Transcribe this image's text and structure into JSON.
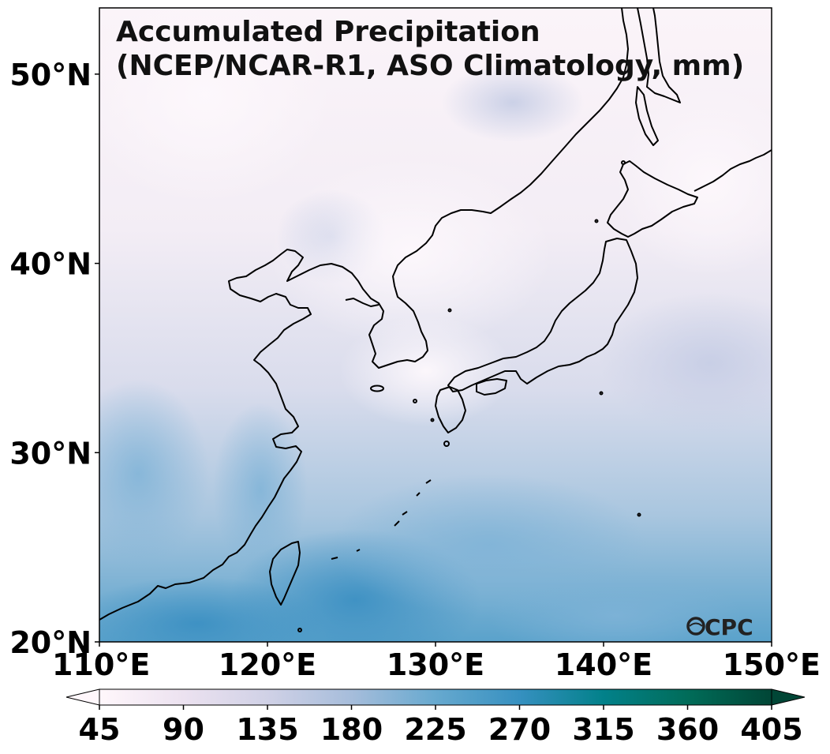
{
  "map": {
    "title_line1": "Accumulated Precipitation",
    "title_line2": "(NCEP/NCAR-R1, ASO Climatology, mm)",
    "lat_ticks": [
      {
        "label": "50°N",
        "value": 50
      },
      {
        "label": "40°N",
        "value": 40
      },
      {
        "label": "30°N",
        "value": 30
      },
      {
        "label": "20°N",
        "value": 20
      }
    ],
    "lon_ticks": [
      {
        "label": "110°E",
        "value": 110
      },
      {
        "label": "120°E",
        "value": 120
      },
      {
        "label": "130°E",
        "value": 130
      },
      {
        "label": "140°E",
        "value": 140
      },
      {
        "label": "150°E",
        "value": 150
      }
    ],
    "lat_range": [
      20,
      53.5
    ],
    "lon_range": [
      110,
      150
    ],
    "logo": "CPC",
    "colormap": "PuBuGn",
    "colorbar": {
      "ticks": [
        "45",
        "90",
        "135",
        "180",
        "225",
        "270",
        "315",
        "360",
        "405"
      ],
      "min": 45,
      "max": 405,
      "extend": "both",
      "colors": [
        "#fff7fb",
        "#ece2f0",
        "#d0d1e6",
        "#a6bddb",
        "#67a9cf",
        "#3690c0",
        "#02818a",
        "#016c59",
        "#014636"
      ]
    }
  }
}
